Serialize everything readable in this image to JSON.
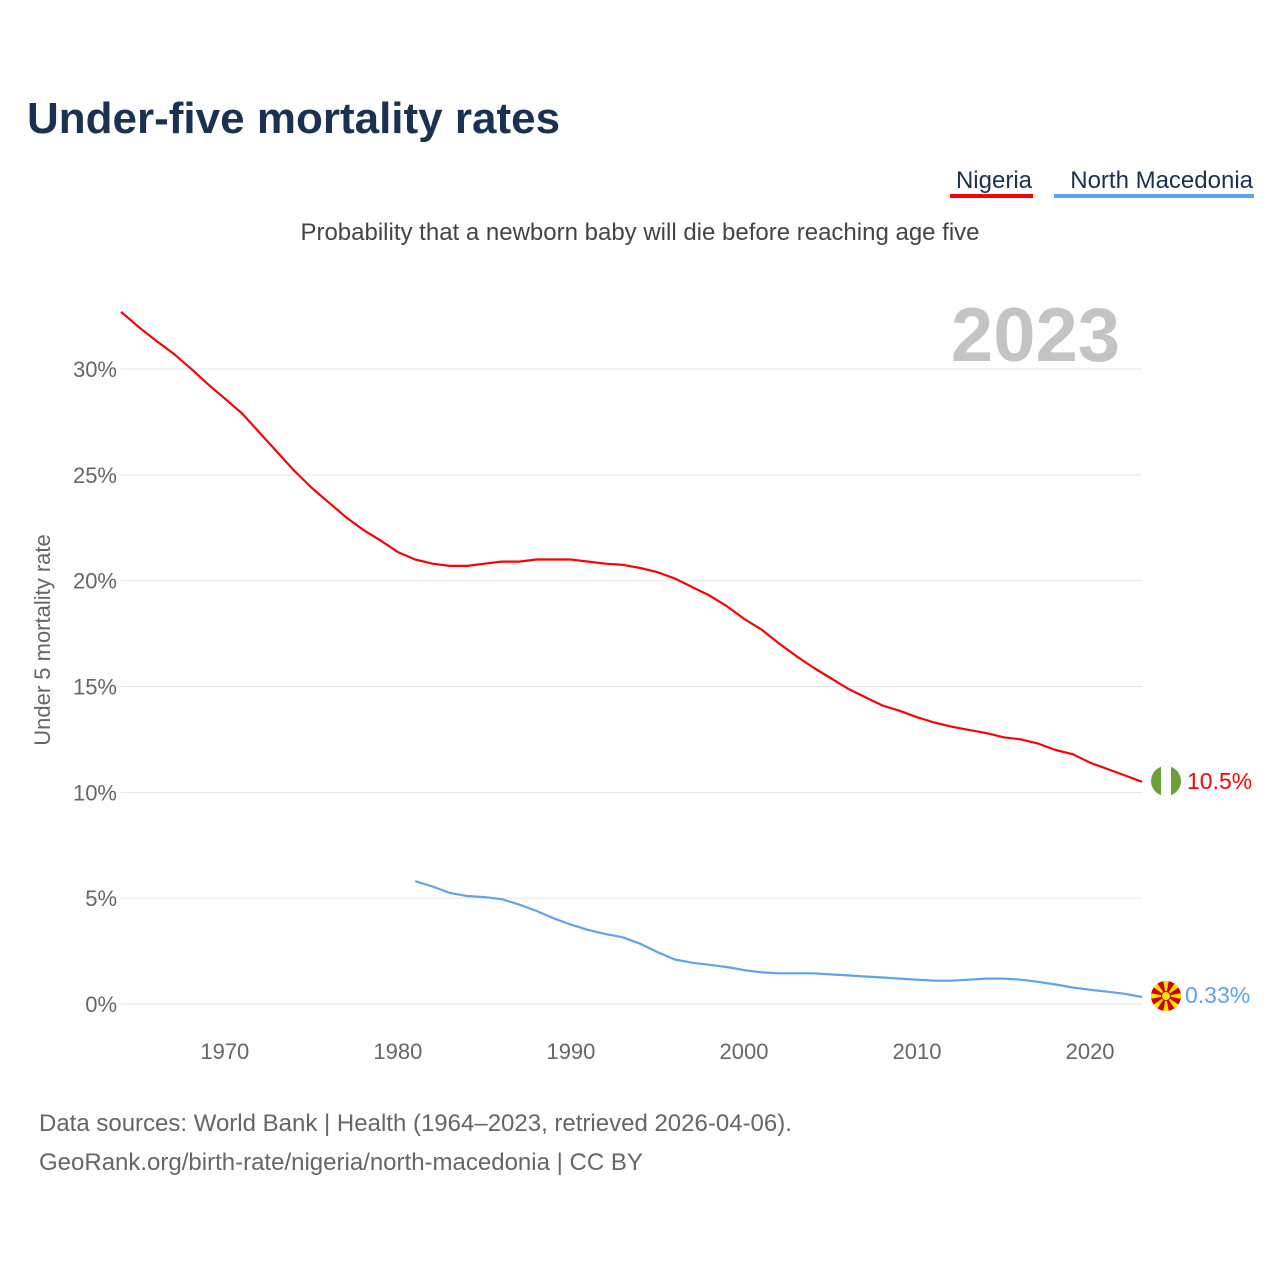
{
  "title": "Under-five mortality rates",
  "subtitle": "Probability that a newborn baby will die before reaching age five",
  "year_label": "2023",
  "legend": [
    {
      "label": "Nigeria",
      "color": "#ff0000"
    },
    {
      "label": "North Macedonia",
      "color": "#5aa5ee"
    }
  ],
  "source_line1": "Data sources: World Bank | Health (1964–2023, retrieved 2026-04-06).",
  "source_line2": "GeoRank.org/birth-rate/nigeria/north-macedonia | CC BY",
  "chart_data": {
    "type": "line",
    "title": "Under-five mortality rates",
    "ylabel": "Under 5 mortality rate",
    "xlim": [
      1964,
      2023
    ],
    "ylim": [
      0,
      30
    ],
    "grid": true,
    "legend_position": "top-right",
    "x_ticks": [
      1970,
      1980,
      1990,
      2000,
      2010,
      2020
    ],
    "y_ticks": [
      0,
      5,
      10,
      15,
      20,
      25,
      30
    ],
    "y_tick_labels": [
      "0%",
      "5%",
      "10%",
      "15%",
      "20%",
      "25%",
      "30%"
    ],
    "series": [
      {
        "name": "Nigeria",
        "color": "#ff0000",
        "end_label": "10.5%",
        "flag": "nigeria-flag",
        "x": [
          1964,
          1965,
          1966,
          1967,
          1968,
          1969,
          1970,
          1971,
          1972,
          1973,
          1974,
          1975,
          1976,
          1977,
          1978,
          1979,
          1980,
          1981,
          1982,
          1983,
          1984,
          1985,
          1986,
          1987,
          1988,
          1989,
          1990,
          1991,
          1992,
          1993,
          1994,
          1995,
          1996,
          1997,
          1998,
          1999,
          2000,
          2001,
          2002,
          2003,
          2004,
          2005,
          2006,
          2007,
          2008,
          2009,
          2010,
          2011,
          2012,
          2013,
          2014,
          2015,
          2016,
          2017,
          2018,
          2019,
          2020,
          2021,
          2022,
          2023
        ],
        "values": [
          32.7,
          32.0,
          31.35,
          30.75,
          30.05,
          29.3,
          28.6,
          27.9,
          27.0,
          26.1,
          25.2,
          24.4,
          23.7,
          23.0,
          22.4,
          21.9,
          21.35,
          21.0,
          20.8,
          20.7,
          20.7,
          20.8,
          20.9,
          20.9,
          21.0,
          21.0,
          21.0,
          20.9,
          20.8,
          20.75,
          20.6,
          20.4,
          20.1,
          19.7,
          19.3,
          18.8,
          18.2,
          17.7,
          17.05,
          16.45,
          15.9,
          15.4,
          14.9,
          14.5,
          14.1,
          13.85,
          13.55,
          13.3,
          13.1,
          12.95,
          12.8,
          12.6,
          12.5,
          12.3,
          12.0,
          11.8,
          11.4,
          11.1,
          10.8,
          10.5
        ]
      },
      {
        "name": "North Macedonia",
        "color": "#5aa5ee",
        "end_label": "0.33%",
        "flag": "north-macedonia-flag",
        "x": [
          1981,
          1982,
          1983,
          1984,
          1985,
          1986,
          1987,
          1988,
          1989,
          1990,
          1991,
          1992,
          1993,
          1994,
          1995,
          1996,
          1997,
          1998,
          1999,
          2000,
          2001,
          2002,
          2003,
          2004,
          2005,
          2006,
          2007,
          2008,
          2009,
          2010,
          2011,
          2012,
          2013,
          2014,
          2015,
          2016,
          2017,
          2018,
          2019,
          2020,
          2021,
          2022,
          2023
        ],
        "values": [
          5.8,
          5.55,
          5.25,
          5.1,
          5.05,
          4.95,
          4.7,
          4.4,
          4.05,
          3.75,
          3.5,
          3.3,
          3.15,
          2.85,
          2.45,
          2.1,
          1.95,
          1.85,
          1.75,
          1.6,
          1.5,
          1.45,
          1.45,
          1.45,
          1.4,
          1.35,
          1.3,
          1.25,
          1.2,
          1.15,
          1.1,
          1.1,
          1.15,
          1.2,
          1.2,
          1.15,
          1.05,
          0.92,
          0.78,
          0.67,
          0.58,
          0.48,
          0.33
        ]
      }
    ]
  }
}
